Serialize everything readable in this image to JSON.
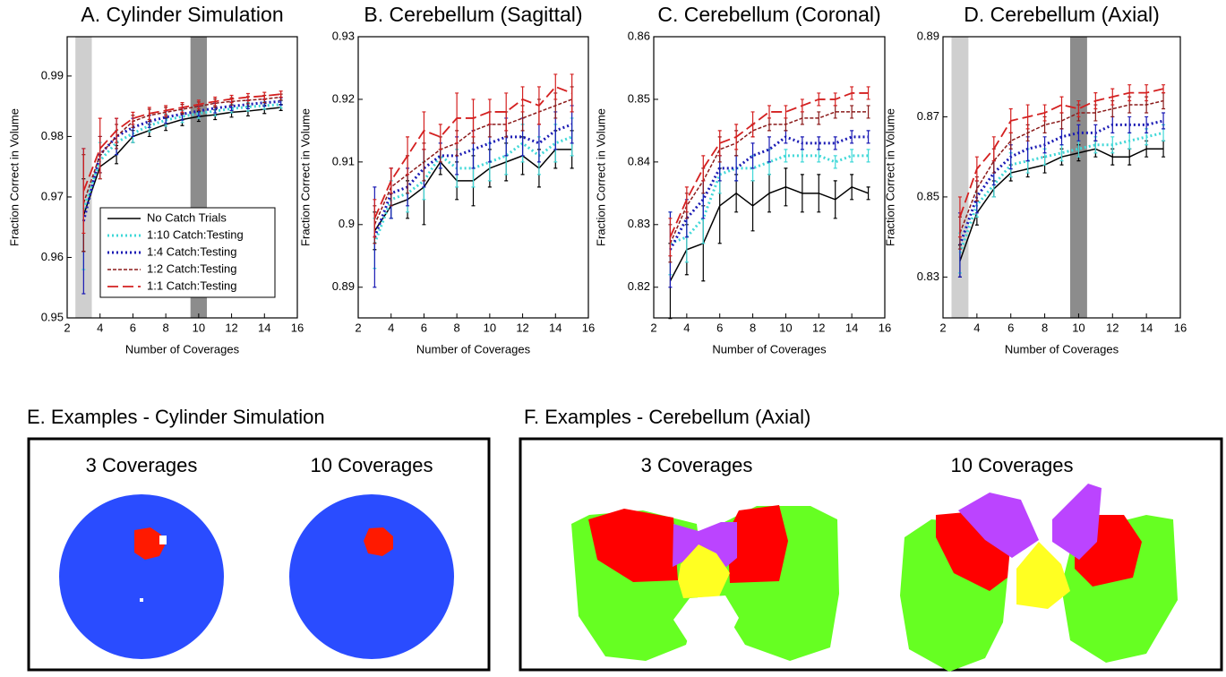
{
  "chart_data": [
    {
      "type": "line",
      "title": "A. Cylinder Simulation",
      "xlabel": "Number of Coverages",
      "ylabel": "Fraction Correct in Volume",
      "x": [
        3,
        4,
        5,
        6,
        7,
        8,
        9,
        10,
        11,
        12,
        13,
        14,
        15
      ],
      "xlim": [
        2,
        16
      ],
      "xticks": [
        2,
        4,
        6,
        8,
        10,
        12,
        14,
        16
      ],
      "ylim": [
        0.95,
        0.9965
      ],
      "yticks": [
        0.95,
        0.96,
        0.97,
        0.98,
        0.99
      ],
      "legend": "lower right",
      "bands": [
        {
          "xlim": [
            2.5,
            3.5
          ],
          "color": "#cfcfcf"
        },
        {
          "xlim": [
            9.5,
            10.5
          ],
          "color": "#8c8c8c"
        }
      ],
      "series": [
        {
          "name": "No Catch Trials",
          "color": "#000000",
          "dash": "solid",
          "values": [
            0.967,
            0.975,
            0.977,
            0.98,
            0.981,
            0.982,
            0.9828,
            0.9833,
            0.9836,
            0.984,
            0.9842,
            0.9845,
            0.9848
          ],
          "errors": [
            0.006,
            0.002,
            0.0015,
            0.001,
            0.001,
            0.001,
            0.001,
            0.0008,
            0.0008,
            0.0008,
            0.0008,
            0.0007,
            0.0005
          ]
        },
        {
          "name": "1:10 Catch:Testing",
          "color": "#40d8d8",
          "dash": "dotted",
          "values": [
            0.968,
            0.976,
            0.979,
            0.9805,
            0.9818,
            0.9827,
            0.9833,
            0.9838,
            0.9842,
            0.9846,
            0.9849,
            0.9851,
            0.9853
          ],
          "errors": [
            0.01,
            0.003,
            0.002,
            0.0015,
            0.001,
            0.001,
            0.001,
            0.0008,
            0.0008,
            0.0007,
            0.0007,
            0.0006,
            0.0006
          ]
        },
        {
          "name": "1:4 Catch:Testing",
          "color": "#1a1ab4",
          "dash": "dotted",
          "values": [
            0.966,
            0.977,
            0.98,
            0.9815,
            0.9825,
            0.9832,
            0.9837,
            0.9842,
            0.9847,
            0.985,
            0.9853,
            0.9856,
            0.9858
          ],
          "errors": [
            0.012,
            0.003,
            0.003,
            0.0015,
            0.001,
            0.001,
            0.001,
            0.0008,
            0.0008,
            0.0007,
            0.0007,
            0.0006,
            0.0006
          ]
        },
        {
          "name": "1:2 Catch:Testing",
          "color": "#8b1a1a",
          "dash": "dashed",
          "values": [
            0.969,
            0.977,
            0.98,
            0.9825,
            0.9835,
            0.984,
            0.9845,
            0.985,
            0.9855,
            0.9858,
            0.986,
            0.9862,
            0.9865
          ],
          "errors": [
            0.008,
            0.003,
            0.002,
            0.001,
            0.001,
            0.0008,
            0.0008,
            0.0007,
            0.0007,
            0.0006,
            0.0006,
            0.0006,
            0.0005
          ]
        },
        {
          "name": "1:1 Catch:Testing",
          "color": "#d42020",
          "dash": "long",
          "values": [
            0.971,
            0.978,
            0.981,
            0.983,
            0.9838,
            0.9843,
            0.9848,
            0.9853,
            0.9858,
            0.9862,
            0.9865,
            0.9867,
            0.987
          ],
          "errors": [
            0.007,
            0.005,
            0.002,
            0.001,
            0.001,
            0.0008,
            0.0008,
            0.0007,
            0.0007,
            0.0006,
            0.0006,
            0.0006,
            0.0005
          ]
        }
      ]
    },
    {
      "type": "line",
      "title": "B. Cerebellum (Sagittal)",
      "xlabel": "Number of Coverages",
      "ylabel": "Fraction Correct in Volume",
      "x": [
        3,
        4,
        5,
        6,
        7,
        8,
        9,
        10,
        11,
        12,
        13,
        14,
        15
      ],
      "xlim": [
        2,
        16
      ],
      "xticks": [
        2,
        4,
        6,
        8,
        10,
        12,
        14,
        16
      ],
      "ylim": [
        0.8851,
        0.93
      ],
      "yticks": [
        0.89,
        0.9,
        0.91,
        0.92,
        0.93
      ],
      "series": [
        {
          "color": "#000000",
          "dash": "solid",
          "values": [
            0.899,
            0.903,
            0.904,
            0.906,
            0.91,
            0.907,
            0.907,
            0.909,
            0.91,
            0.911,
            0.909,
            0.912,
            0.912
          ],
          "errors": [
            0.003,
            0.002,
            0.003,
            0.006,
            0.002,
            0.003,
            0.004,
            0.003,
            0.003,
            0.003,
            0.003,
            0.003,
            0.003
          ]
        },
        {
          "color": "#40d8d8",
          "dash": "dotted",
          "values": [
            0.897,
            0.904,
            0.905,
            0.907,
            0.911,
            0.909,
            0.909,
            0.91,
            0.911,
            0.913,
            0.911,
            0.913,
            0.914
          ],
          "errors": [
            0.004,
            0.003,
            0.003,
            0.003,
            0.002,
            0.003,
            0.003,
            0.003,
            0.003,
            0.003,
            0.003,
            0.003,
            0.003
          ]
        },
        {
          "color": "#1a1ab4",
          "dash": "dotted",
          "values": [
            0.898,
            0.905,
            0.906,
            0.909,
            0.911,
            0.911,
            0.912,
            0.913,
            0.914,
            0.914,
            0.913,
            0.915,
            0.916
          ],
          "errors": [
            0.008,
            0.004,
            0.003,
            0.003,
            0.002,
            0.003,
            0.003,
            0.003,
            0.003,
            0.003,
            0.003,
            0.003,
            0.003
          ]
        },
        {
          "color": "#8b1a1a",
          "dash": "dashed",
          "values": [
            0.9,
            0.906,
            0.908,
            0.91,
            0.912,
            0.913,
            0.915,
            0.916,
            0.916,
            0.917,
            0.918,
            0.919,
            0.92
          ],
          "errors": [
            0.003,
            0.003,
            0.003,
            0.003,
            0.002,
            0.002,
            0.002,
            0.002,
            0.002,
            0.002,
            0.002,
            0.002,
            0.002
          ]
        },
        {
          "color": "#d42020",
          "dash": "long",
          "values": [
            0.901,
            0.907,
            0.911,
            0.915,
            0.914,
            0.917,
            0.917,
            0.918,
            0.918,
            0.92,
            0.919,
            0.922,
            0.921
          ],
          "errors": [
            0.003,
            0.002,
            0.003,
            0.003,
            0.002,
            0.004,
            0.003,
            0.002,
            0.003,
            0.002,
            0.003,
            0.002,
            0.003
          ]
        }
      ]
    },
    {
      "type": "line",
      "title": "C. Cerebellum (Coronal)",
      "xlabel": "Number of Coverages",
      "ylabel": "Fraction Correct in Volume",
      "x": [
        3,
        4,
        5,
        6,
        7,
        8,
        9,
        10,
        11,
        12,
        13,
        14,
        15
      ],
      "xlim": [
        2,
        16
      ],
      "xticks": [
        2,
        4,
        6,
        8,
        10,
        12,
        14,
        16
      ],
      "ylim": [
        0.8151,
        0.86
      ],
      "yticks": [
        0.82,
        0.83,
        0.84,
        0.85,
        0.86
      ],
      "series": [
        {
          "color": "#000000",
          "dash": "solid",
          "values": [
            0.821,
            0.826,
            0.827,
            0.833,
            0.835,
            0.833,
            0.835,
            0.836,
            0.835,
            0.835,
            0.834,
            0.836,
            0.835
          ],
          "errors": [
            0.006,
            0.004,
            0.006,
            0.006,
            0.003,
            0.004,
            0.003,
            0.003,
            0.003,
            0.003,
            0.003,
            0.002,
            0.001
          ]
        },
        {
          "color": "#40d8d8",
          "dash": "dotted",
          "values": [
            0.827,
            0.828,
            0.831,
            0.838,
            0.839,
            0.839,
            0.84,
            0.841,
            0.841,
            0.841,
            0.84,
            0.841,
            0.841
          ],
          "errors": [
            0.005,
            0.004,
            0.004,
            0.003,
            0.002,
            0.002,
            0.002,
            0.001,
            0.001,
            0.001,
            0.001,
            0.001,
            0.001
          ]
        },
        {
          "color": "#1a1ab4",
          "dash": "dotted",
          "values": [
            0.826,
            0.831,
            0.834,
            0.839,
            0.839,
            0.841,
            0.842,
            0.844,
            0.843,
            0.843,
            0.843,
            0.844,
            0.844
          ],
          "errors": [
            0.006,
            0.003,
            0.003,
            0.002,
            0.002,
            0.002,
            0.002,
            0.001,
            0.001,
            0.001,
            0.001,
            0.001,
            0.001
          ]
        },
        {
          "color": "#8b1a1a",
          "dash": "dashed",
          "values": [
            0.827,
            0.833,
            0.837,
            0.842,
            0.843,
            0.845,
            0.846,
            0.846,
            0.847,
            0.847,
            0.848,
            0.848,
            0.848
          ],
          "errors": [
            0.003,
            0.002,
            0.002,
            0.002,
            0.002,
            0.001,
            0.001,
            0.001,
            0.001,
            0.001,
            0.001,
            0.001,
            0.001
          ]
        },
        {
          "color": "#d42020",
          "dash": "long",
          "values": [
            0.828,
            0.834,
            0.839,
            0.843,
            0.844,
            0.846,
            0.848,
            0.848,
            0.849,
            0.85,
            0.85,
            0.851,
            0.851
          ],
          "errors": [
            0.003,
            0.002,
            0.002,
            0.002,
            0.002,
            0.002,
            0.001,
            0.001,
            0.001,
            0.001,
            0.001,
            0.001,
            0.001
          ]
        }
      ]
    },
    {
      "type": "line",
      "title": "D. Cerebellum (Axial)",
      "xlabel": "Number of Coverages",
      "ylabel": "Fraction Correct in Volume",
      "x": [
        3,
        4,
        5,
        6,
        7,
        8,
        9,
        10,
        11,
        12,
        13,
        14,
        15
      ],
      "xlim": [
        2,
        16
      ],
      "xticks": [
        2,
        4,
        6,
        8,
        10,
        12,
        14,
        16
      ],
      "ylim": [
        0.8198,
        0.89
      ],
      "yticks": [
        0.83,
        0.85,
        0.87,
        0.89
      ],
      "bands": [
        {
          "xlim": [
            2.5,
            3.5
          ],
          "color": "#cfcfcf"
        },
        {
          "xlim": [
            9.5,
            10.5
          ],
          "color": "#8c8c8c"
        }
      ],
      "series": [
        {
          "color": "#000000",
          "dash": "solid",
          "values": [
            0.834,
            0.846,
            0.852,
            0.856,
            0.857,
            0.858,
            0.86,
            0.861,
            0.862,
            0.86,
            0.86,
            0.862,
            0.862
          ],
          "errors": [
            0.004,
            0.003,
            0.002,
            0.002,
            0.002,
            0.002,
            0.002,
            0.002,
            0.002,
            0.002,
            0.002,
            0.002,
            0.002
          ]
        },
        {
          "color": "#40d8d8",
          "dash": "dotted",
          "values": [
            0.836,
            0.848,
            0.853,
            0.858,
            0.859,
            0.86,
            0.861,
            0.862,
            0.863,
            0.863,
            0.864,
            0.865,
            0.866
          ],
          "errors": [
            0.005,
            0.003,
            0.003,
            0.003,
            0.003,
            0.002,
            0.002,
            0.002,
            0.002,
            0.002,
            0.002,
            0.002,
            0.002
          ]
        },
        {
          "color": "#1a1ab4",
          "dash": "dotted",
          "values": [
            0.838,
            0.85,
            0.856,
            0.86,
            0.862,
            0.863,
            0.865,
            0.866,
            0.866,
            0.868,
            0.868,
            0.868,
            0.869
          ],
          "errors": [
            0.008,
            0.004,
            0.003,
            0.003,
            0.003,
            0.002,
            0.002,
            0.002,
            0.002,
            0.002,
            0.002,
            0.002,
            0.002
          ]
        },
        {
          "color": "#8b1a1a",
          "dash": "dashed",
          "values": [
            0.841,
            0.852,
            0.859,
            0.864,
            0.866,
            0.868,
            0.869,
            0.871,
            0.871,
            0.872,
            0.873,
            0.873,
            0.874
          ],
          "errors": [
            0.004,
            0.003,
            0.003,
            0.002,
            0.002,
            0.002,
            0.002,
            0.002,
            0.002,
            0.002,
            0.002,
            0.002,
            0.002
          ]
        },
        {
          "color": "#d42020",
          "dash": "long",
          "values": [
            0.845,
            0.857,
            0.862,
            0.869,
            0.87,
            0.871,
            0.873,
            0.872,
            0.874,
            0.875,
            0.876,
            0.876,
            0.877
          ],
          "errors": [
            0.005,
            0.003,
            0.003,
            0.003,
            0.003,
            0.002,
            0.002,
            0.002,
            0.002,
            0.002,
            0.002,
            0.002,
            0.001
          ]
        }
      ]
    }
  ],
  "examples": [
    {
      "title": "E. Examples - Cylinder Simulation",
      "labels": [
        "3 Coverages",
        "10 Coverages"
      ]
    },
    {
      "title": "F. Examples - Cerebellum (Axial)",
      "labels": [
        "3 Coverages",
        "10 Coverages"
      ]
    }
  ]
}
